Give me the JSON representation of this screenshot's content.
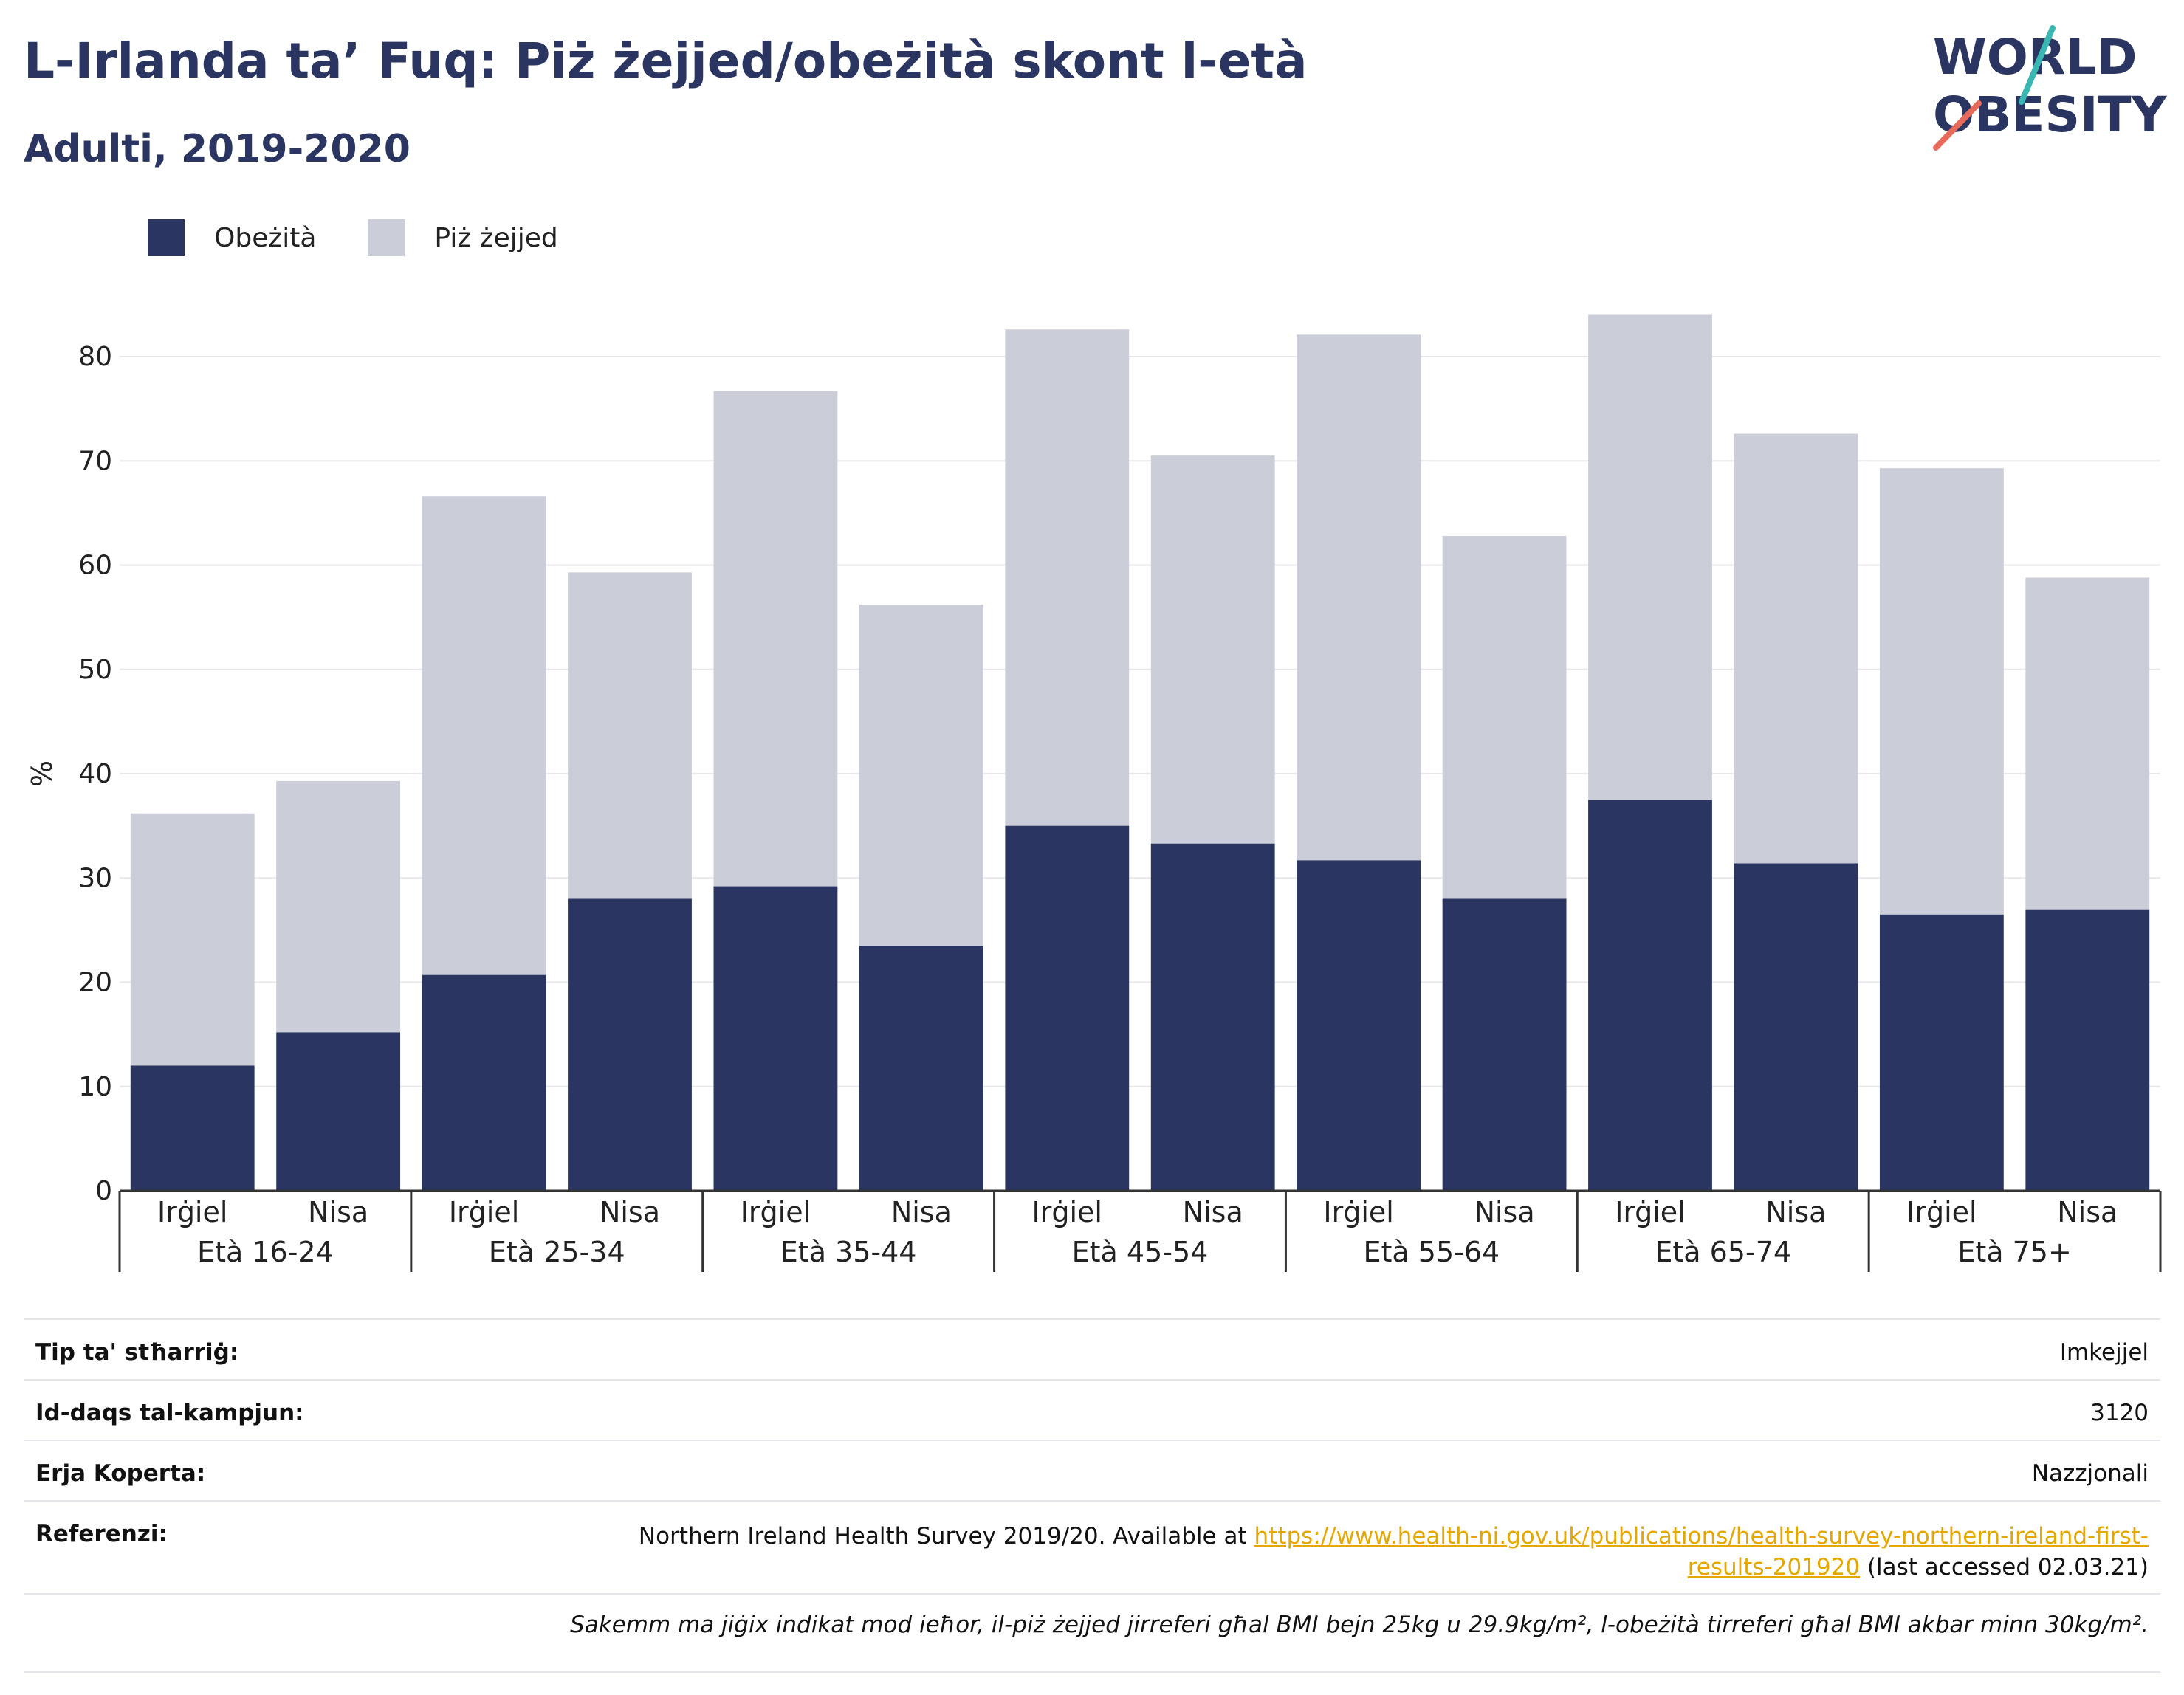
{
  "header": {
    "title": "L-Irlanda ta’ Fuq: Piż żejjed/obeżità skont l-età",
    "subtitle": "Adulti, 2019-2020"
  },
  "logo": {
    "line1": "WORLD",
    "line2": "OBESITY",
    "accent_teal": "#3bb7b3",
    "accent_coral": "#e86a5a"
  },
  "legend": {
    "obesity_label": "Obeżità",
    "overweight_label": "Piż żejjed"
  },
  "colors": {
    "obesity": "#2a3561",
    "overweight": "#cbcdd8",
    "text": "#2a3561"
  },
  "chart_data": {
    "type": "bar",
    "stacked": true,
    "ylabel": "%",
    "ylim": [
      0,
      88
    ],
    "yticks": [
      0,
      10,
      20,
      30,
      40,
      50,
      60,
      70,
      80
    ],
    "grid": true,
    "legend_position": "top-left",
    "groups": [
      "Età 16-24",
      "Età 25-34",
      "Età 35-44",
      "Età 45-54",
      "Età 55-64",
      "Età 65-74",
      "Età 75+"
    ],
    "subcategories": [
      "Irġiel",
      "Nisa"
    ],
    "series": [
      {
        "name": "Obeżità",
        "values": [
          12.0,
          15.2,
          20.7,
          28.0,
          29.2,
          23.5,
          35.0,
          33.3,
          31.7,
          28.0,
          37.5,
          31.4,
          26.5,
          27.0
        ]
      },
      {
        "name": "Piż żejjed",
        "values": [
          24.2,
          24.1,
          45.9,
          31.3,
          47.5,
          32.7,
          47.6,
          37.2,
          50.4,
          34.8,
          46.5,
          41.2,
          42.8,
          31.8
        ]
      }
    ]
  },
  "meta": {
    "survey_type_label": "Tip ta' stħarriġ:",
    "survey_type_value": "Imkejjel",
    "sample_size_label": "Id-daqs tal-kampjun:",
    "sample_size_value": "3120",
    "area_label": "Erja Koperta:",
    "area_value": "Nazzjonali",
    "references_label": "Referenzi:",
    "references_text": "Northern Ireland Health Survey 2019/20. Available at ",
    "references_link_1": "https://www.health-ni.gov.uk/publications/health-survey-northern-ireland-first-",
    "references_link_2": "results-201920",
    "references_suffix": " (last accessed 02.03.21)",
    "note": "Sakemm ma jiġix indikat mod ieħor, il-piż żejjed jirreferi għal BMI bejn 25kg u 29.9kg/m², l-obeżità tirreferi għal BMI akbar minn 30kg/m²."
  }
}
